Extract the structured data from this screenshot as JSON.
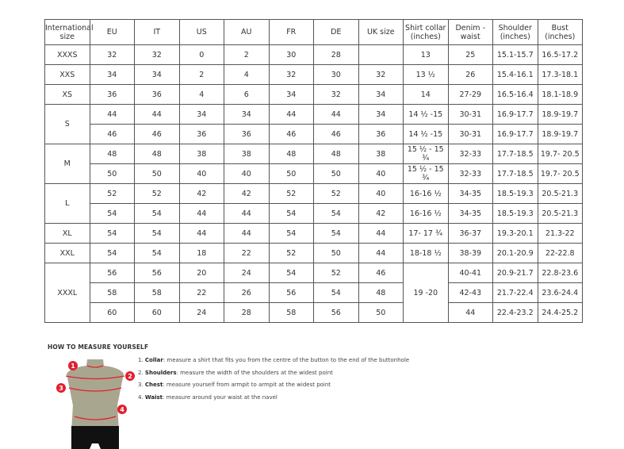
{
  "table": {
    "headers": [
      "International size",
      "EU",
      "IT",
      "US",
      "AU",
      "FR",
      "DE",
      "UK size",
      "Shirt collar (inches)",
      "Denim - waist",
      "Shoulder (inches)",
      "Bust (inches)"
    ],
    "rows": [
      {
        "size": "XXXS",
        "cells": [
          "32",
          "32",
          "0",
          "2",
          "30",
          "28",
          "",
          "13",
          "25",
          "15.1-15.7",
          "16.5-17.2"
        ]
      },
      {
        "size": "XXS",
        "cells": [
          "34",
          "34",
          "2",
          "4",
          "32",
          "30",
          "32",
          "13 ½",
          "26",
          "15.4-16.1",
          "17.3-18.1"
        ]
      },
      {
        "size": "XS",
        "cells": [
          "36",
          "36",
          "4",
          "6",
          "34",
          "32",
          "34",
          "14",
          "27-29",
          "16.5-16.4",
          "18.1-18.9"
        ]
      },
      {
        "size": "S",
        "cells": [
          "44",
          "44",
          "34",
          "34",
          "44",
          "44",
          "34",
          "14 ½ -15",
          "30-31",
          "16.9-17.7",
          "18.9-19.7"
        ]
      },
      {
        "size": "",
        "cells": [
          "46",
          "46",
          "36",
          "36",
          "46",
          "46",
          "36",
          "14 ½ -15",
          "30-31",
          "16.9-17.7",
          "18.9-19.7"
        ]
      },
      {
        "size": "M",
        "cells": [
          "48",
          "48",
          "38",
          "38",
          "48",
          "48",
          "38",
          "15 ½ - 15 ¾",
          "32-33",
          "17.7-18.5",
          "19.7- 20.5"
        ]
      },
      {
        "size": "",
        "cells": [
          "50",
          "50",
          "40",
          "40",
          "50",
          "50",
          "40",
          "15 ½ - 15 ¾",
          "32-33",
          "17.7-18.5",
          "19.7- 20.5"
        ]
      },
      {
        "size": "L",
        "cells": [
          "52",
          "52",
          "42",
          "42",
          "52",
          "52",
          "40",
          "16-16 ½",
          "34-35",
          "18.5-19.3",
          "20.5-21.3"
        ]
      },
      {
        "size": "",
        "cells": [
          "54",
          "54",
          "44",
          "44",
          "54",
          "54",
          "42",
          "16-16 ½",
          "34-35",
          "18.5-19.3",
          "20.5-21.3"
        ]
      },
      {
        "size": "XL",
        "cells": [
          "54",
          "54",
          "44",
          "44",
          "54",
          "54",
          "44",
          "17- 17 ¾",
          "36-37",
          "19.3-20.1",
          "21.3-22"
        ]
      },
      {
        "size": "XXL",
        "cells": [
          "54",
          "54",
          "18",
          "22",
          "52",
          "50",
          "44",
          "18-18 ½",
          "38-39",
          "20.1-20.9",
          "22-22.8"
        ]
      },
      {
        "size": "XXXL",
        "cells": [
          "56",
          "56",
          "20",
          "24",
          "54",
          "52",
          "46",
          "19 -20",
          "40-41",
          "20.9-21.7",
          "22.8-23.6"
        ]
      },
      {
        "size": "",
        "cells": [
          "58",
          "58",
          "22",
          "26",
          "56",
          "54",
          "48",
          "",
          "42-43",
          "21.7-22.4",
          "23.6-24.4"
        ]
      },
      {
        "size": "",
        "cells": [
          "60",
          "60",
          "24",
          "28",
          "58",
          "56",
          "50",
          "",
          "44",
          "22.4-23.2",
          "24.4-25.2"
        ]
      }
    ]
  },
  "howto": {
    "title": "HOW TO MEASURE YOURSELF",
    "markers": [
      "1",
      "2",
      "3",
      "4"
    ],
    "steps": [
      {
        "num": "1.",
        "term": "Collar",
        "text": ": measure a shirt that fits you from the centre of the button to the end of the buttonhole"
      },
      {
        "num": "2.",
        "term": "Shoulders",
        "text": ": measure the width of the shoulders at the widest point"
      },
      {
        "num": "3.",
        "term": "Chest",
        "text": ": measure yourself from armpit to armpit at the widest point"
      },
      {
        "num": "4.",
        "term": "Waist",
        "text": ": measure around your waist at the navel"
      }
    ],
    "accent": "#e0202e"
  }
}
